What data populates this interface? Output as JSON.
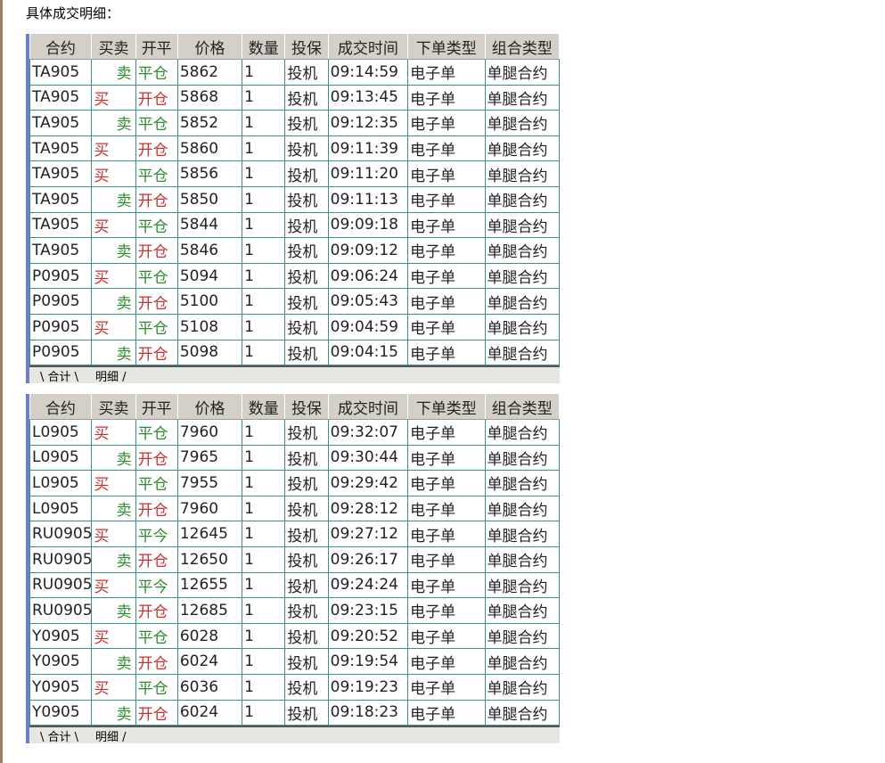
{
  "caption": "具体成交明细：",
  "columns": [
    "合约",
    "买卖",
    "开平",
    "价格",
    "数量",
    "投保",
    "成交时间",
    "下单类型",
    "组合类型"
  ],
  "tabs": [
    "合计",
    "明细"
  ],
  "colors": {
    "buy": "#c83030",
    "sell": "#2e8a2e",
    "open": "#c83030",
    "close": "#2e8a2e"
  },
  "tables": [
    {
      "rows": [
        [
          "TA905",
          "卖",
          "平仓",
          "5862",
          "1",
          "投机",
          "09:14:59",
          "电子单",
          "单腿合约"
        ],
        [
          "TA905",
          "买",
          "开仓",
          "5868",
          "1",
          "投机",
          "09:13:45",
          "电子单",
          "单腿合约"
        ],
        [
          "TA905",
          "卖",
          "平仓",
          "5852",
          "1",
          "投机",
          "09:12:35",
          "电子单",
          "单腿合约"
        ],
        [
          "TA905",
          "买",
          "开仓",
          "5860",
          "1",
          "投机",
          "09:11:39",
          "电子单",
          "单腿合约"
        ],
        [
          "TA905",
          "买",
          "平仓",
          "5856",
          "1",
          "投机",
          "09:11:20",
          "电子单",
          "单腿合约"
        ],
        [
          "TA905",
          "卖",
          "开仓",
          "5850",
          "1",
          "投机",
          "09:11:13",
          "电子单",
          "单腿合约"
        ],
        [
          "TA905",
          "买",
          "平仓",
          "5844",
          "1",
          "投机",
          "09:09:18",
          "电子单",
          "单腿合约"
        ],
        [
          "TA905",
          "卖",
          "开仓",
          "5846",
          "1",
          "投机",
          "09:09:12",
          "电子单",
          "单腿合约"
        ],
        [
          "P0905",
          "买",
          "平仓",
          "5094",
          "1",
          "投机",
          "09:06:24",
          "电子单",
          "单腿合约"
        ],
        [
          "P0905",
          "卖",
          "开仓",
          "5100",
          "1",
          "投机",
          "09:05:43",
          "电子单",
          "单腿合约"
        ],
        [
          "P0905",
          "买",
          "平仓",
          "5108",
          "1",
          "投机",
          "09:04:59",
          "电子单",
          "单腿合约"
        ],
        [
          "P0905",
          "卖",
          "开仓",
          "5098",
          "1",
          "投机",
          "09:04:15",
          "电子单",
          "单腿合约"
        ]
      ]
    },
    {
      "rows": [
        [
          "L0905",
          "买",
          "平仓",
          "7960",
          "1",
          "投机",
          "09:32:07",
          "电子单",
          "单腿合约"
        ],
        [
          "L0905",
          "卖",
          "开仓",
          "7965",
          "1",
          "投机",
          "09:30:44",
          "电子单",
          "单腿合约"
        ],
        [
          "L0905",
          "买",
          "平仓",
          "7955",
          "1",
          "投机",
          "09:29:42",
          "电子单",
          "单腿合约"
        ],
        [
          "L0905",
          "卖",
          "开仓",
          "7960",
          "1",
          "投机",
          "09:28:12",
          "电子单",
          "单腿合约"
        ],
        [
          "RU0905",
          "买",
          "平今",
          "12645",
          "1",
          "投机",
          "09:27:12",
          "电子单",
          "单腿合约"
        ],
        [
          "RU0905",
          "卖",
          "开仓",
          "12650",
          "1",
          "投机",
          "09:26:17",
          "电子单",
          "单腿合约"
        ],
        [
          "RU0905",
          "买",
          "平今",
          "12655",
          "1",
          "投机",
          "09:24:24",
          "电子单",
          "单腿合约"
        ],
        [
          "RU0905",
          "卖",
          "开仓",
          "12685",
          "1",
          "投机",
          "09:23:15",
          "电子单",
          "单腿合约"
        ],
        [
          "Y0905",
          "买",
          "平仓",
          "6028",
          "1",
          "投机",
          "09:20:52",
          "电子单",
          "单腿合约"
        ],
        [
          "Y0905",
          "卖",
          "开仓",
          "6024",
          "1",
          "投机",
          "09:19:54",
          "电子单",
          "单腿合约"
        ],
        [
          "Y0905",
          "买",
          "平仓",
          "6036",
          "1",
          "投机",
          "09:19:23",
          "电子单",
          "单腿合约"
        ],
        [
          "Y0905",
          "卖",
          "开仓",
          "6024",
          "1",
          "投机",
          "09:18:23",
          "电子单",
          "单腿合约"
        ]
      ]
    }
  ]
}
